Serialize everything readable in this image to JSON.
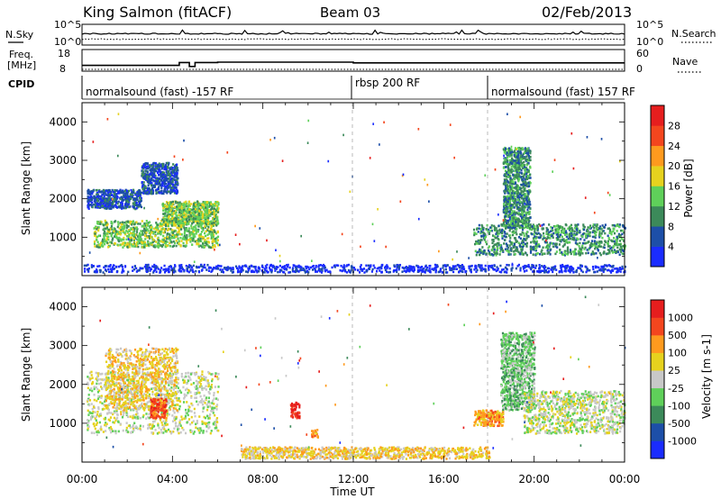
{
  "header": {
    "station": "King Salmon (fitACF)",
    "beam": "Beam 03",
    "date": "02/Feb/2013"
  },
  "noise_panel": {
    "left_label": "N.Sky",
    "right_label": "N.Search",
    "left_ticks": [
      "10^5",
      "10^0"
    ],
    "right_ticks": [
      "10^5",
      "10^0"
    ]
  },
  "freq_panel": {
    "left_label_1": "Freq.",
    "left_label_2": "[MHz]",
    "right_label": "Nave",
    "left_ticks": [
      "18",
      "8"
    ],
    "right_ticks": [
      "60",
      "0"
    ],
    "freq_steps": [
      {
        "start_h": 0,
        "end_h": 4.3,
        "value": 10.2
      },
      {
        "start_h": 4.3,
        "end_h": 4.75,
        "value": 11.8
      },
      {
        "start_h": 4.75,
        "end_h": 5.0,
        "value": 9.6
      },
      {
        "start_h": 5.0,
        "end_h": 6.0,
        "value": 11.8
      },
      {
        "start_h": 6.0,
        "end_h": 12.0,
        "value": 12.0
      },
      {
        "start_h": 12.0,
        "end_h": 24.0,
        "value": 11.6
      }
    ]
  },
  "cpid": {
    "label": "CPID",
    "segments": [
      {
        "text": "normalsound (fast) -157 RF",
        "start_h": 0
      },
      {
        "text": "rbsp 200 RF",
        "start_h": 12
      },
      {
        "text": "normalsound (fast) 157 RF",
        "start_h": 18
      }
    ]
  },
  "time_axis": {
    "label": "Time UT",
    "ticks": [
      "00:00",
      "04:00",
      "08:00",
      "12:00",
      "16:00",
      "20:00",
      "00:00"
    ]
  },
  "chart_data": [
    {
      "type": "heatmap",
      "quantity": "Power",
      "ylabel": "Slant Range [km]",
      "ylim": [
        0,
        4500
      ],
      "yticks": [
        1000,
        2000,
        3000,
        4000
      ],
      "xlim_hours": [
        0,
        24
      ],
      "colorbar": {
        "label": "Power [dB]",
        "ticks": [
          "4",
          "8",
          "12",
          "16",
          "20",
          "24",
          "28"
        ],
        "colors": [
          "#1a2cff",
          "#1d4fa8",
          "#3c8a5a",
          "#5fd05a",
          "#e6d21e",
          "#ff9a1e",
          "#f4461e",
          "#e61e1e"
        ]
      },
      "regions": [
        {
          "t0": 0.5,
          "t1": 6.0,
          "r0": 700,
          "r1": 1400,
          "level": 3
        },
        {
          "t0": 3.5,
          "t1": 6.0,
          "r0": 1300,
          "r1": 1900,
          "level": 3
        },
        {
          "t0": 0.2,
          "t1": 2.6,
          "r0": 1700,
          "r1": 2200,
          "level": 1
        },
        {
          "t0": 2.6,
          "t1": 4.2,
          "r0": 2100,
          "r1": 2900,
          "level": 1
        },
        {
          "t0": 17.3,
          "t1": 24.0,
          "r0": 500,
          "r1": 1300,
          "level": 2
        },
        {
          "t0": 18.6,
          "t1": 19.8,
          "r0": 1200,
          "r1": 3300,
          "level": 2
        },
        {
          "t0": 0.0,
          "t1": 24.0,
          "r0": 50,
          "r1": 250,
          "level": 0
        }
      ]
    },
    {
      "type": "heatmap",
      "quantity": "Velocity",
      "ylabel": "Slant Range [km]",
      "ylim": [
        0,
        4500
      ],
      "yticks": [
        1000,
        2000,
        3000,
        4000
      ],
      "xlim_hours": [
        0,
        24
      ],
      "colorbar": {
        "label": "Velocity [m s-1]",
        "ticks": [
          "1000",
          "500",
          "100",
          "25",
          "-25",
          "-100",
          "-500",
          "-1000"
        ],
        "colors": [
          "#1a2cff",
          "#1d4fa8",
          "#3c8a5a",
          "#5fd05a",
          "#c8c8c8",
          "#e6d21e",
          "#ff9a1e",
          "#f4461e",
          "#e61e1e"
        ]
      },
      "regions": [
        {
          "t0": 0.2,
          "t1": 6.0,
          "r0": 700,
          "r1": 2300,
          "level": 4
        },
        {
          "t0": 1.0,
          "t1": 4.2,
          "r0": 1300,
          "r1": 2900,
          "level": 5
        },
        {
          "t0": 3.0,
          "t1": 3.7,
          "r0": 1100,
          "r1": 1600,
          "level": 7
        },
        {
          "t0": 9.2,
          "t1": 9.6,
          "r0": 1100,
          "r1": 1500,
          "level": 8
        },
        {
          "t0": 10.1,
          "t1": 10.4,
          "r0": 600,
          "r1": 800,
          "level": 6
        },
        {
          "t0": 17.3,
          "t1": 18.6,
          "r0": 900,
          "r1": 1300,
          "level": 6
        },
        {
          "t0": 18.5,
          "t1": 20.0,
          "r0": 1300,
          "r1": 3300,
          "level": 3
        },
        {
          "t0": 19.5,
          "t1": 24.0,
          "r0": 700,
          "r1": 1800,
          "level": 4
        },
        {
          "t0": 7.0,
          "t1": 18.0,
          "r0": 50,
          "r1": 350,
          "level": 5
        }
      ]
    }
  ]
}
